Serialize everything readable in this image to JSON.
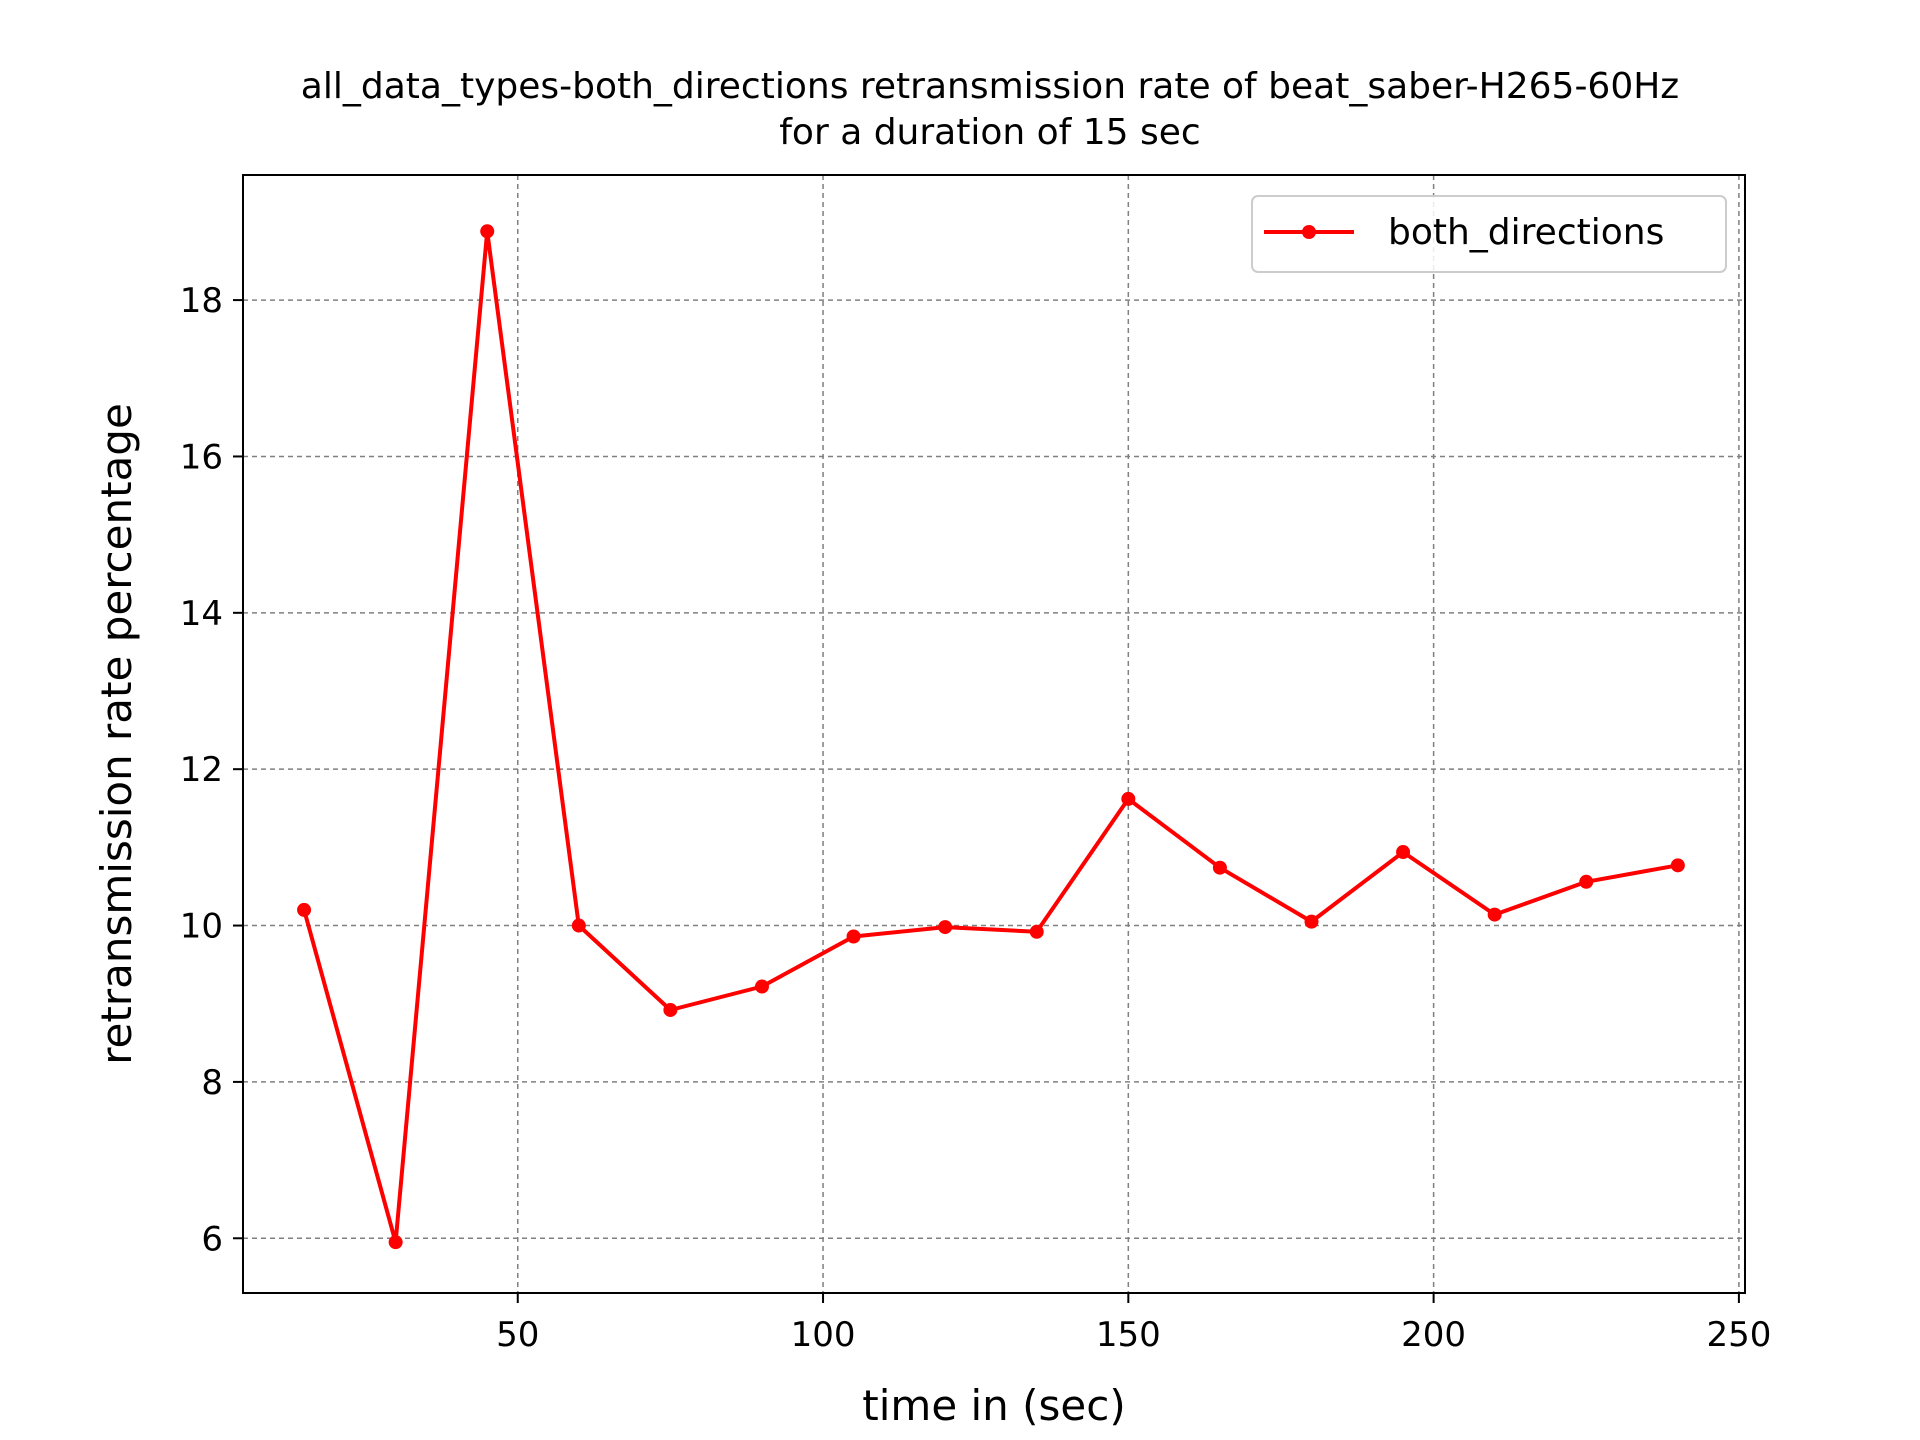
{
  "chart_data": {
    "type": "line",
    "title": "all_data_types-both_directions retransmission rate of beat_saber-H265-60Hz",
    "subtitle": "for a duration of 15 sec",
    "xlabel": "time in (sec)",
    "ylabel": "retransmission rate percentage",
    "xlim": [
      5,
      251
    ],
    "ylim": [
      5.3,
      19.6
    ],
    "xticks": [
      50,
      100,
      150,
      200,
      250
    ],
    "yticks": [
      6,
      8,
      10,
      12,
      14,
      16,
      18
    ],
    "grid": true,
    "legend_position": "top-right",
    "series": [
      {
        "name": "both_directions",
        "color": "#ff0000",
        "x": [
          15,
          30,
          45,
          60,
          75,
          90,
          105,
          120,
          135,
          150,
          165,
          180,
          195,
          210,
          225,
          240
        ],
        "y": [
          10.2,
          5.95,
          18.88,
          10.0,
          8.92,
          9.22,
          9.86,
          9.98,
          9.92,
          11.62,
          10.74,
          10.05,
          10.94,
          10.14,
          10.56,
          10.77
        ]
      }
    ]
  }
}
